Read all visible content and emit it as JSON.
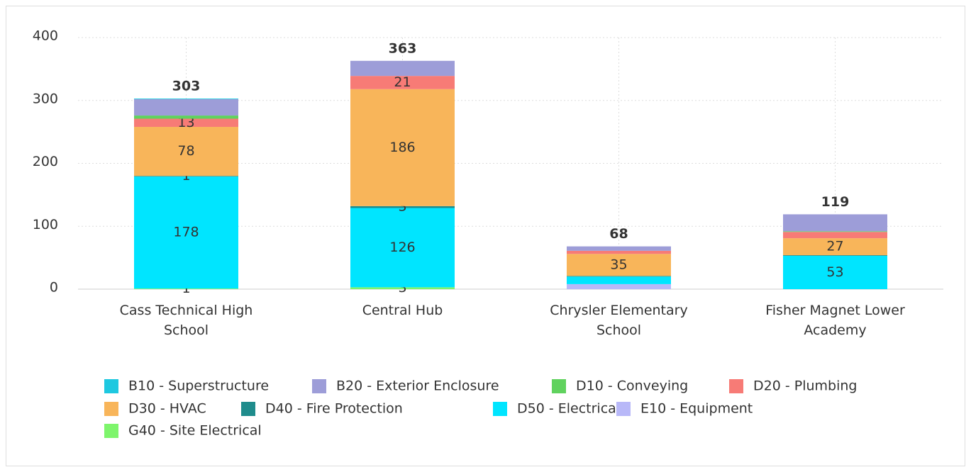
{
  "chart_data": {
    "type": "stacked_bar",
    "categories": [
      "Cass Technical High School",
      "Central Hub",
      "Chrysler Elementary School",
      "Fisher Magnet Lower Academy"
    ],
    "ylim": [
      0,
      400
    ],
    "yticks": [
      0,
      100,
      200,
      300,
      400
    ],
    "grid": true,
    "stack_totals": [
      303,
      363,
      68,
      119
    ],
    "series": [
      {
        "name": "B10 - Superstructure",
        "color": "#1ec8e0",
        "values": [
          1,
          null,
          null,
          null
        ],
        "value_labels": [
          null,
          null,
          null,
          null
        ]
      },
      {
        "name": "B20 - Exterior Enclosure",
        "color": "#9d9dd8",
        "values": [
          26,
          24,
          7,
          27
        ],
        "value_labels": [
          null,
          null,
          null,
          null
        ]
      },
      {
        "name": "D10 - Conveying",
        "color": "#60d25e",
        "values": [
          5,
          null,
          null,
          1
        ],
        "value_labels": [
          null,
          null,
          null,
          null
        ]
      },
      {
        "name": "D20 - Plumbing",
        "color": "#f77b76",
        "values": [
          13,
          21,
          5,
          10
        ],
        "value_labels": [
          "13",
          "21",
          null,
          null
        ]
      },
      {
        "name": "D30 - HVAC",
        "color": "#f8b55a",
        "values": [
          78,
          186,
          35,
          27
        ],
        "value_labels": [
          "78",
          "186",
          "35",
          "27"
        ]
      },
      {
        "name": "D40 - Fire Protection",
        "color": "#1f8c8c",
        "values": [
          1,
          3,
          1,
          1
        ],
        "value_labels": [
          "1",
          "3",
          null,
          null
        ]
      },
      {
        "name": "D50 - Electrical",
        "color": "#00e5ff",
        "values": [
          178,
          126,
          12,
          53
        ],
        "value_labels": [
          "178",
          "126",
          null,
          "53"
        ]
      },
      {
        "name": "E10 - Equipment",
        "color": "#b8b8f8",
        "values": [
          null,
          null,
          8,
          null
        ],
        "value_labels": [
          null,
          null,
          null,
          null
        ]
      },
      {
        "name": "G40 - Site Electrical",
        "color": "#7ef56c",
        "values": [
          1,
          3,
          null,
          null
        ],
        "value_labels": [
          "1",
          "3",
          null,
          null
        ]
      }
    ]
  }
}
